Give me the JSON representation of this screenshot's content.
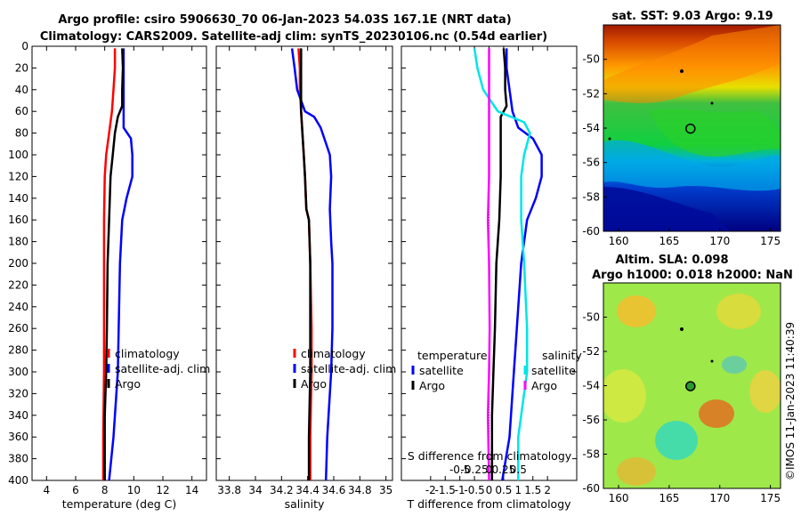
{
  "header": {
    "line1": "Argo profile: csiro 5906630_70 06-Jan-2023 54.03S 167.1E (NRT data)",
    "line2": "Climatology: CARS2009. Satellite-adj clim: synTS_20230106.nc (0.54d earlier)"
  },
  "credit": "©IMOS 11-Jan-2023 11:40:39",
  "colors": {
    "clim": "#ff0000",
    "sat": "#0000ff",
    "argo": "#000000",
    "cyan": "#00e5e5",
    "magenta": "#ff00ff"
  },
  "chart_data": [
    {
      "type": "line",
      "id": "temperature",
      "xlabel": "temperature (deg C)",
      "xlim": [
        3,
        15
      ],
      "xticks": [
        4,
        6,
        8,
        10,
        12,
        14
      ],
      "ylim": [
        0,
        400
      ],
      "yticks": [
        0,
        20,
        40,
        60,
        80,
        100,
        120,
        140,
        160,
        180,
        200,
        220,
        240,
        260,
        280,
        300,
        320,
        340,
        360,
        380,
        400
      ],
      "legend": [
        "climatology",
        "satellite-adj. clim",
        "Argo"
      ],
      "series": [
        {
          "name": "climatology",
          "depth": [
            2,
            20,
            40,
            60,
            80,
            100,
            120,
            160,
            200,
            300,
            360,
            400
          ],
          "values": [
            8.7,
            8.7,
            8.6,
            8.5,
            8.3,
            8.1,
            8.0,
            7.95,
            7.95,
            7.95,
            7.9,
            7.9
          ]
        },
        {
          "name": "satellite-adj. clim",
          "depth": [
            2,
            20,
            40,
            60,
            75,
            85,
            100,
            120,
            140,
            160,
            200,
            300,
            360,
            400
          ],
          "values": [
            9.3,
            9.3,
            9.3,
            9.3,
            9.3,
            9.8,
            9.9,
            9.9,
            9.5,
            9.2,
            9.05,
            8.9,
            8.6,
            8.3
          ]
        },
        {
          "name": "Argo",
          "depth": [
            2,
            20,
            40,
            55,
            65,
            80,
            100,
            120,
            160,
            200,
            260,
            300,
            340,
            400
          ],
          "values": [
            9.2,
            9.25,
            9.2,
            9.2,
            8.9,
            8.7,
            8.55,
            8.4,
            8.3,
            8.2,
            8.15,
            8.1,
            8.0,
            8.0
          ]
        }
      ]
    },
    {
      "type": "line",
      "id": "salinity",
      "xlabel": "salinity",
      "xlim": [
        33.7,
        35.05
      ],
      "xticks": [
        33.8,
        34,
        34.2,
        34.4,
        34.6,
        34.8,
        35
      ],
      "ylim": [
        0,
        400
      ],
      "legend": [
        "climatology",
        "satellite-adj. clim",
        "Argo"
      ],
      "series": [
        {
          "name": "climatology",
          "depth": [
            2,
            20,
            40,
            60,
            80,
            100,
            120,
            150,
            160,
            200,
            260,
            300,
            360,
            400
          ],
          "values": [
            34.33,
            34.34,
            34.34,
            34.35,
            34.36,
            34.37,
            34.38,
            34.39,
            34.41,
            34.42,
            34.43,
            34.43,
            34.42,
            34.42
          ],
          "line": "red"
        },
        {
          "name": "satellite-adj. clim",
          "depth": [
            2,
            20,
            40,
            60,
            65,
            75,
            100,
            120,
            150,
            180,
            200,
            260,
            300,
            360,
            400
          ],
          "values": [
            34.28,
            34.3,
            34.32,
            34.38,
            34.45,
            34.5,
            34.57,
            34.58,
            34.57,
            34.58,
            34.59,
            34.59,
            34.58,
            34.55,
            34.54
          ]
        },
        {
          "name": "Argo",
          "depth": [
            2,
            20,
            40,
            60,
            80,
            100,
            120,
            150,
            160,
            200,
            260,
            300,
            360,
            400
          ],
          "values": [
            34.35,
            34.35,
            34.35,
            34.35,
            34.36,
            34.37,
            34.38,
            34.39,
            34.41,
            34.42,
            34.42,
            34.42,
            34.41,
            34.41
          ]
        }
      ]
    },
    {
      "type": "line",
      "id": "difference",
      "xlabel": "T difference from climatology",
      "xlim": [
        -3,
        3
      ],
      "xticks": [
        -2,
        -1.5,
        -1,
        -0.5,
        0,
        0.5,
        1,
        1.5,
        2
      ],
      "top_xlabel": "S difference from climatology",
      "top_ticks": [
        "-0.5",
        "-0.25",
        "0",
        "0.25",
        "0.5"
      ],
      "ylim": [
        0,
        400
      ],
      "legend_left_title": "temperature",
      "legend_right_title": "salinity",
      "legend": [
        "satellite",
        "Argo",
        "satellite",
        "Argo"
      ],
      "series": [
        {
          "name": "T satellite",
          "depth": [
            2,
            20,
            40,
            60,
            75,
            85,
            100,
            120,
            140,
            160,
            200,
            260,
            300,
            360,
            400
          ],
          "values": [
            0.6,
            0.6,
            0.7,
            0.8,
            1.0,
            1.5,
            1.8,
            1.8,
            1.6,
            1.3,
            1.1,
            0.95,
            0.85,
            0.7,
            0.45
          ]
        },
        {
          "name": "T Argo",
          "depth": [
            2,
            20,
            40,
            55,
            65,
            80,
            100,
            120,
            160,
            200,
            260,
            300,
            340,
            400
          ],
          "values": [
            0.5,
            0.55,
            0.55,
            0.6,
            0.4,
            0.4,
            0.4,
            0.4,
            0.35,
            0.25,
            0.2,
            0.15,
            0.1,
            0.1
          ]
        },
        {
          "name": "S satellite",
          "depth": [
            2,
            20,
            40,
            60,
            70,
            80,
            100,
            120,
            160,
            200,
            260,
            300,
            360,
            400
          ],
          "values": [
            -0.25,
            -0.2,
            -0.1,
            0.15,
            0.6,
            0.7,
            0.6,
            0.55,
            0.55,
            0.6,
            0.65,
            0.65,
            0.5,
            0.5
          ]
        },
        {
          "name": "S Argo",
          "depth": [
            2,
            20,
            40,
            60,
            80,
            100,
            120,
            160,
            200,
            260,
            300,
            340,
            400
          ],
          "values": [
            0,
            0,
            0,
            0,
            0,
            0,
            0,
            -0.02,
            0,
            0.01,
            0,
            -0.02,
            0
          ]
        }
      ]
    },
    {
      "type": "heatmap",
      "id": "sst_map",
      "title": "sat. SST: 9.03 Argo: 9.19",
      "xlim": [
        158.5,
        176
      ],
      "xticks": [
        160,
        165,
        170,
        175
      ],
      "ylim": [
        -60,
        -48
      ],
      "yticks": [
        -50,
        -52,
        -54,
        -56,
        -58,
        -60
      ],
      "float_lon": 167.1,
      "float_lat": -54.03
    },
    {
      "type": "heatmap",
      "id": "sla_map",
      "title1": "Altim. SLA: 0.098",
      "title2": "Argo h1000: 0.018 h2000: NaN",
      "xlim": [
        158.5,
        176
      ],
      "xticks": [
        160,
        165,
        170,
        175
      ],
      "ylim": [
        -60,
        -48
      ],
      "yticks": [
        -50,
        -52,
        -54,
        -56,
        -58,
        -60
      ],
      "float_lon": 167.1,
      "float_lat": -54.03
    }
  ]
}
